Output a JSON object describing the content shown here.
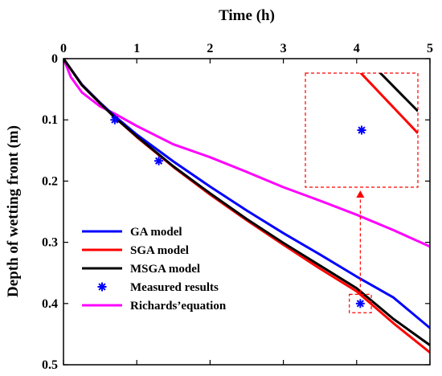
{
  "chart_data": {
    "type": "line",
    "xlabel": "Time (h)",
    "ylabel": "Depth of wetting front (m)",
    "xlim": [
      0,
      5
    ],
    "ylim": [
      0,
      0.5
    ],
    "x_axis_position": "top",
    "y_axis_inverted": true,
    "x_ticks": [
      0,
      1,
      2,
      3,
      4,
      5
    ],
    "y_ticks": [
      0,
      0.1,
      0.2,
      0.3,
      0.4,
      0.5
    ],
    "x_tick_labels": [
      "0",
      "1",
      "2",
      "3",
      "4",
      "5"
    ],
    "y_tick_labels": [
      "0",
      "0.1",
      "0.2",
      "0.3",
      "0.4",
      "0.5"
    ],
    "grid": false,
    "legend_position": "bottom-left",
    "series": [
      {
        "name": "GA model",
        "color": "#0000ff",
        "style": "line",
        "x": [
          0,
          0.25,
          0.5,
          0.7,
          1,
          1.5,
          2,
          2.5,
          3,
          3.5,
          4,
          4.5,
          5
        ],
        "y": [
          0,
          0.042,
          0.072,
          0.094,
          0.124,
          0.168,
          0.209,
          0.248,
          0.285,
          0.32,
          0.356,
          0.39,
          0.44
        ]
      },
      {
        "name": "SGA model",
        "color": "#ff0000",
        "style": "line",
        "x": [
          0,
          0.25,
          0.5,
          0.7,
          1,
          1.5,
          2,
          2.5,
          3,
          3.5,
          4,
          4.5,
          5
        ],
        "y": [
          0,
          0.043,
          0.073,
          0.096,
          0.128,
          0.177,
          0.222,
          0.264,
          0.304,
          0.343,
          0.38,
          0.432,
          0.48
        ]
      },
      {
        "name": "MSGA model",
        "color": "#000000",
        "style": "line",
        "x": [
          0,
          0.25,
          0.5,
          0.7,
          1,
          1.5,
          2,
          2.5,
          3,
          3.5,
          4,
          4.5,
          5
        ],
        "y": [
          0,
          0.043,
          0.073,
          0.096,
          0.127,
          0.176,
          0.22,
          0.262,
          0.301,
          0.338,
          0.375,
          0.425,
          0.468
        ]
      },
      {
        "name": "Measured results",
        "color": "#0000ff",
        "style": "marker",
        "marker": "asterisk",
        "x": [
          0.7,
          1.3,
          4.05
        ],
        "y": [
          0.1,
          0.167,
          0.4
        ]
      },
      {
        "name": "Richards’equation",
        "color": "#ff00ff",
        "style": "line",
        "x": [
          0,
          0.1,
          0.25,
          0.5,
          0.7,
          1,
          1.5,
          2,
          2.5,
          3,
          3.5,
          4,
          4.5,
          5
        ],
        "y": [
          0,
          0.03,
          0.055,
          0.078,
          0.09,
          0.11,
          0.14,
          0.161,
          0.185,
          0.21,
          0.232,
          0.255,
          0.28,
          0.307
        ]
      }
    ],
    "inset": {
      "source_xlim": [
        3.9,
        4.2
      ],
      "source_ylim": [
        0.385,
        0.415
      ]
    }
  }
}
